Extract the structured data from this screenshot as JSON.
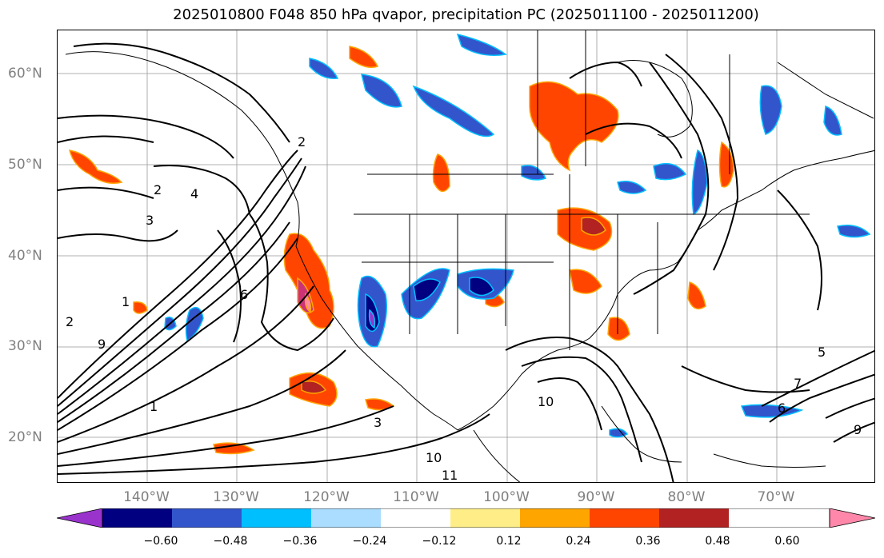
{
  "title": "2025010800 F048 850 hPa qvapor, precipitation PC (2025011100 - 2025011200)",
  "lat_labels": [
    "60°N",
    "50°N",
    "40°N",
    "30°N",
    "20°N"
  ],
  "lon_labels": [
    "140°W",
    "130°W",
    "120°W",
    "110°W",
    "100°W",
    "90°W",
    "80°W",
    "70°W"
  ],
  "colorbar": {
    "colors": [
      "#9933cc",
      "#000080",
      "#3355cc",
      "#00bfff",
      "#aaddff",
      "#ffffff",
      "#ffee88",
      "#ffa500",
      "#ff4500",
      "#b22222",
      "#ff88aa"
    ],
    "tick_labels": [
      "−0.60",
      "−0.48",
      "−0.36",
      "−0.24",
      "−0.12",
      "0.12",
      "0.24",
      "0.36",
      "0.48",
      "0.60"
    ]
  },
  "contour_labels": [
    "2",
    "3",
    "4",
    "6",
    "1",
    "2",
    "9",
    "5",
    "7",
    "10",
    "11",
    "10",
    "3",
    "1",
    "2",
    "9",
    "6"
  ]
}
